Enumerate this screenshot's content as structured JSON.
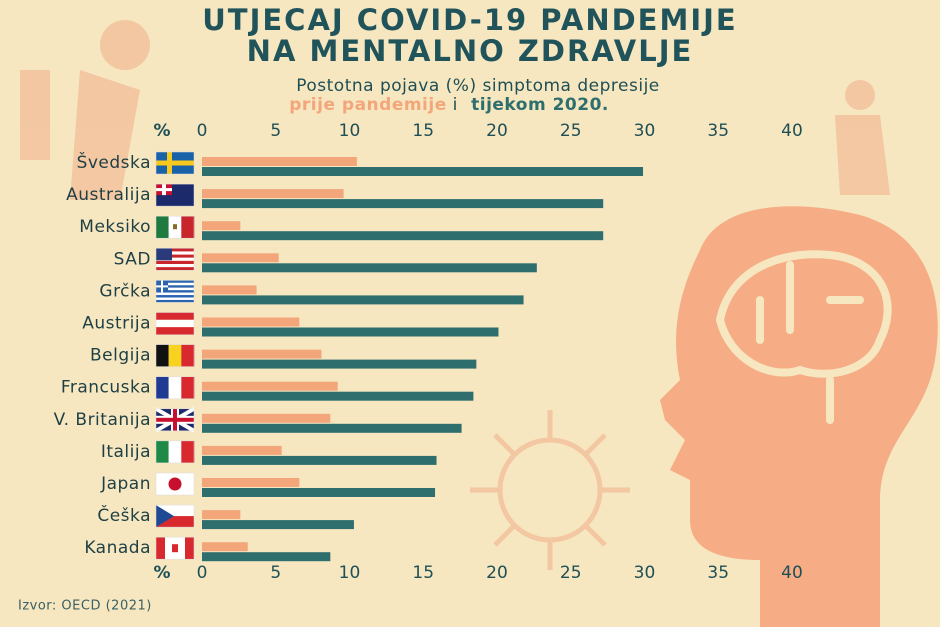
{
  "chart_data": {
    "type": "bar",
    "orientation": "horizontal",
    "title": [
      "UTJECAJ COVID-19 PANDEMIJE",
      "NA MENTALNO ZDRAVLJE"
    ],
    "subtitle": "Postotna pojava (%) simptoma depresije",
    "legend_joiner": "i",
    "axis_label": "%",
    "source": "Izvor: OECD (2021)",
    "categories": [
      "Švedska",
      "Australija",
      "Meksiko",
      "SAD",
      "Grčka",
      "Austrija",
      "Belgija",
      "Francuska",
      "V. Britanija",
      "Italija",
      "Japan",
      "Češka",
      "Kanada"
    ],
    "series": [
      {
        "name": "prije pandemije",
        "color": "#f4a67b",
        "values": [
          10.5,
          9.6,
          2.6,
          5.2,
          3.7,
          6.6,
          8.1,
          9.2,
          8.7,
          5.4,
          6.6,
          2.6,
          3.1
        ]
      },
      {
        "name": "tijekom 2020.",
        "color": "#2e6e6d",
        "values": [
          29.9,
          27.2,
          27.2,
          22.7,
          21.8,
          20.1,
          18.6,
          18.4,
          17.6,
          15.9,
          15.8,
          10.3,
          8.7
        ]
      }
    ],
    "xlim": [
      0,
      40
    ],
    "xticks": [
      0,
      5,
      10,
      15,
      20,
      25,
      30,
      35,
      40
    ]
  }
}
